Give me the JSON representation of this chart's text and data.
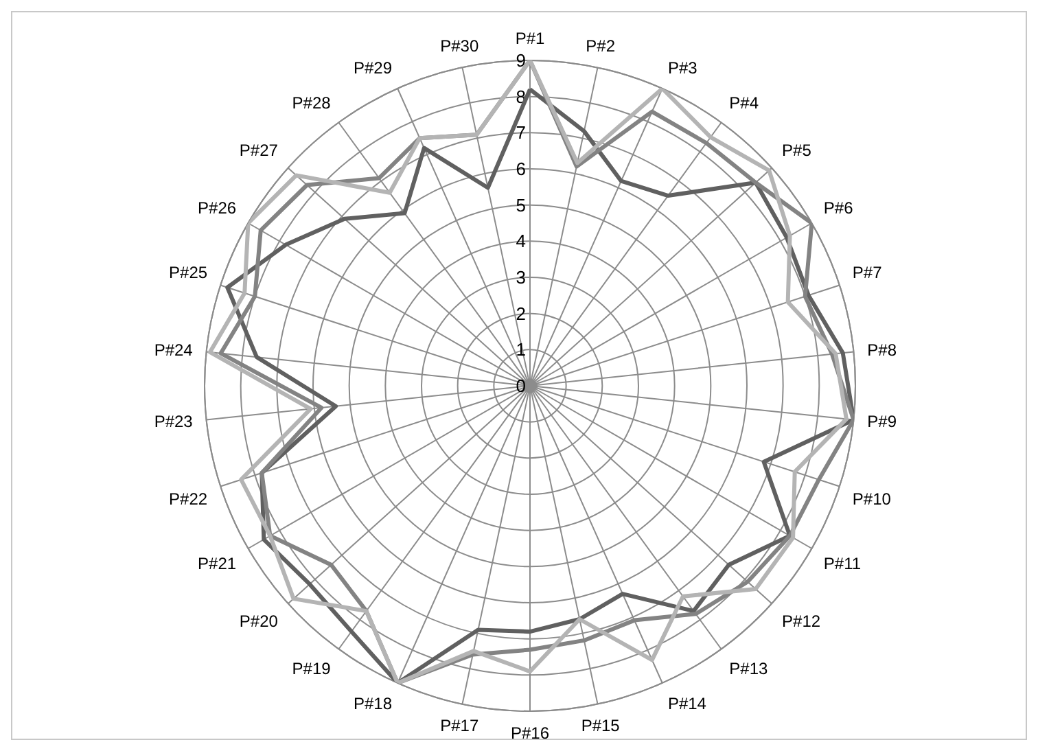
{
  "chart_data": {
    "type": "radar",
    "categories": [
      "P#1",
      "P#2",
      "P#3",
      "P#4",
      "P#5",
      "P#6",
      "P#7",
      "P#8",
      "P#9",
      "P#10",
      "P#11",
      "P#12",
      "P#13",
      "P#14",
      "P#15",
      "P#16",
      "P#17",
      "P#18",
      "P#19",
      "P#20",
      "P#21",
      "P#22",
      "P#23",
      "P#24",
      "P#25",
      "P#26",
      "P#27",
      "P#28",
      "P#29",
      "P#30"
    ],
    "ylim": [
      0,
      9
    ],
    "yticks": [
      0,
      1,
      2,
      3,
      4,
      5,
      6,
      7,
      8,
      9
    ],
    "grid": true,
    "marker": "none",
    "line_style": "solid",
    "series": [
      {
        "color": "#606060",
        "values": [
          8.2,
          7.2,
          6.2,
          6.5,
          8.4,
          8.2,
          8.1,
          8.7,
          9,
          6.8,
          8.3,
          7.4,
          7.7,
          6.3,
          6.6,
          6.8,
          6.9,
          9,
          8.4,
          8.2,
          8.5,
          7.8,
          5.4,
          7.6,
          8.8,
          7.8,
          6.9,
          5.9,
          7.2,
          5.6
        ]
      },
      {
        "color": "#838383",
        "values": [
          9,
          6.2,
          8.3,
          8.3,
          8.4,
          9,
          8,
          8.4,
          9,
          8.4,
          8.3,
          8.1,
          7.8,
          7.1,
          7.2,
          7.3,
          7.6,
          9,
          7.7,
          7.4,
          8.3,
          7.8,
          5.8,
          8.6,
          8,
          8.6,
          8.3,
          7.1,
          7.5,
          7.1
        ]
      },
      {
        "color": "#b4b4b4",
        "values": [
          9,
          6.3,
          9,
          8.5,
          8.9,
          8.3,
          7.5,
          8.5,
          8.8,
          7.7,
          8.4,
          8.4,
          7.2,
          8.3,
          6.6,
          7.9,
          7.5,
          9,
          7.7,
          8.8,
          8.3,
          8.4,
          6.1,
          8.9,
          8.3,
          9,
          8.7,
          6.6,
          7.5,
          7.1
        ]
      }
    ]
  }
}
